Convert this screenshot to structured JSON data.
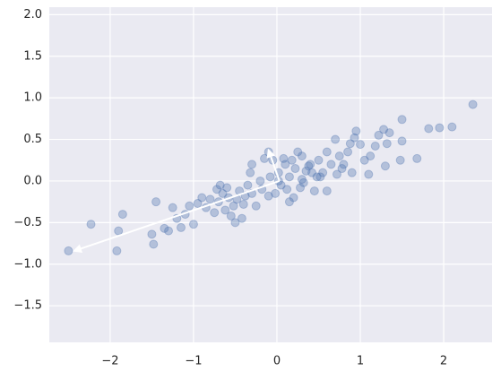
{
  "chart_data": {
    "type": "scatter",
    "x": [
      2.35,
      2.1,
      1.95,
      1.82,
      1.68,
      1.5,
      1.5,
      1.48,
      1.35,
      1.32,
      1.3,
      1.28,
      1.22,
      1.18,
      1.12,
      1.05,
      1.0,
      0.95,
      0.93,
      0.88,
      0.85,
      0.8,
      0.78,
      0.75,
      0.72,
      0.7,
      0.65,
      0.6,
      0.55,
      0.5,
      0.48,
      0.45,
      0.4,
      0.35,
      0.3,
      0.28,
      0.25,
      0.22,
      0.2,
      0.18,
      0.15,
      0.12,
      0.1,
      0.08,
      0.05,
      0.02,
      -0.02,
      -0.05,
      -0.08,
      -0.1,
      -0.15,
      -0.2,
      -0.25,
      -0.3,
      -0.32,
      -0.35,
      -0.4,
      -0.42,
      -0.45,
      -0.5,
      -0.52,
      -0.55,
      -0.58,
      -0.6,
      -0.62,
      -0.65,
      -0.7,
      -0.72,
      -0.75,
      -0.8,
      -0.85,
      -0.9,
      -0.95,
      -1.0,
      -1.05,
      -1.1,
      -1.15,
      -1.2,
      -1.25,
      -1.3,
      -1.35,
      -1.45,
      -1.48,
      -1.5,
      -1.85,
      -1.9,
      -1.92,
      -2.23,
      -2.5,
      0.6,
      0.9,
      1.1,
      0.3,
      -0.3,
      0.15,
      -0.1,
      0.38,
      0.52,
      -0.48,
      -0.68,
      0.02,
      0.32,
      0.42,
      -0.18,
      -0.38
    ],
    "y": [
      0.92,
      0.65,
      0.64,
      0.63,
      0.27,
      0.74,
      0.48,
      0.25,
      0.58,
      0.45,
      0.18,
      0.62,
      0.55,
      0.42,
      0.3,
      0.25,
      0.44,
      0.6,
      0.52,
      0.45,
      0.35,
      0.2,
      0.15,
      0.3,
      0.08,
      0.5,
      0.2,
      0.35,
      0.1,
      0.25,
      0.05,
      -0.12,
      0.2,
      0.12,
      0.02,
      -0.08,
      0.35,
      0.15,
      -0.2,
      0.25,
      0.05,
      -0.1,
      0.2,
      0.27,
      -0.05,
      0.1,
      -0.15,
      0.25,
      0.05,
      -0.18,
      0.27,
      0.0,
      -0.3,
      -0.15,
      0.1,
      -0.05,
      -0.28,
      -0.45,
      -0.12,
      -0.5,
      -0.3,
      -0.42,
      -0.2,
      -0.08,
      -0.35,
      -0.15,
      -0.25,
      -0.1,
      -0.38,
      -0.22,
      -0.32,
      -0.2,
      -0.27,
      -0.52,
      -0.3,
      -0.4,
      -0.56,
      -0.45,
      -0.32,
      -0.6,
      -0.57,
      -0.25,
      -0.76,
      -0.64,
      -0.4,
      -0.6,
      -0.84,
      -0.52,
      -0.84,
      -0.12,
      0.1,
      0.08,
      0.3,
      0.2,
      -0.25,
      0.35,
      0.18,
      0.05,
      -0.22,
      -0.05,
      0.0,
      -0.02,
      0.1,
      -0.1,
      -0.18
    ],
    "color": "#4c72b0",
    "arrows": [
      {
        "start": [
          0.03,
          0.0
        ],
        "end": [
          -2.43,
          -0.84
        ]
      },
      {
        "start": [
          0.03,
          0.0
        ],
        "end": [
          -0.1,
          0.37
        ]
      }
    ],
    "xlim": [
      -2.73,
      2.58
    ],
    "ylim": [
      -1.94,
      2.09
    ],
    "xticks": [
      {
        "value": -2,
        "label": "−2"
      },
      {
        "value": -1,
        "label": "−1"
      },
      0,
      1,
      2
    ],
    "yticks": [
      {
        "value": -1.5,
        "label": "−1.5"
      },
      {
        "value": -1.0,
        "label": "−1.0"
      },
      {
        "value": -0.5,
        "label": "−0.5"
      },
      {
        "value": 0,
        "label": "0.0"
      },
      0.5,
      {
        "value": 1,
        "label": "1.0"
      },
      1.5,
      {
        "value": 2,
        "label": "2.0"
      }
    ],
    "grid": true
  }
}
